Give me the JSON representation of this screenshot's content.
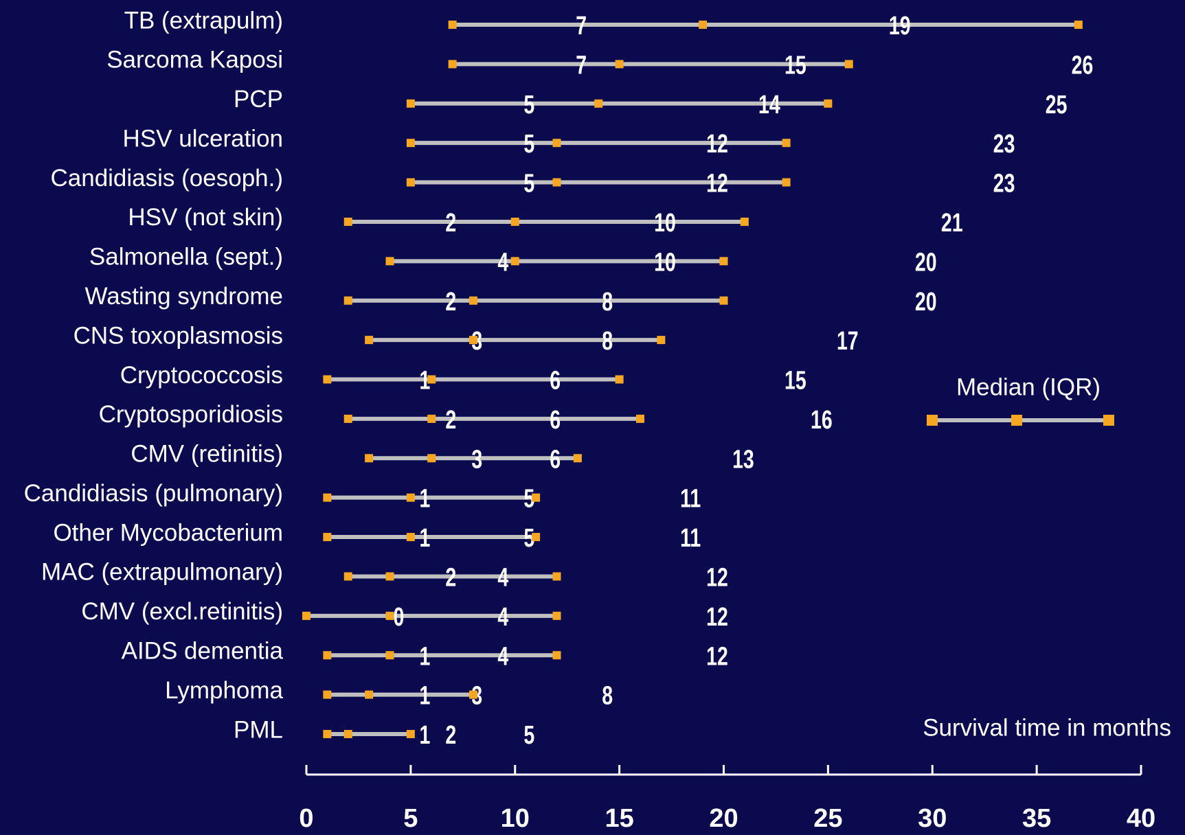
{
  "chart_data": {
    "type": "range",
    "categories": [
      "TB (extrapulm)",
      "Sarcoma Kaposi",
      "PCP",
      "HSV ulceration",
      "Candidiasis (oesoph.)",
      "HSV (not skin)",
      "Salmonella (sept.)",
      "Wasting syndrome",
      "CNS toxoplasmosis",
      "Cryptococcosis",
      "Cryptosporidiosis",
      "CMV (retinitis)",
      "Candidiasis (pulmonary)",
      "Other Mycobacterium",
      "MAC (extrapulmonary)",
      "CMV (excl.retinitis)",
      "AIDS dementia",
      "Lymphoma",
      "PML"
    ],
    "values": [
      [
        7,
        19,
        37
      ],
      [
        7,
        15,
        26
      ],
      [
        5,
        14,
        25
      ],
      [
        5,
        12,
        23
      ],
      [
        5,
        12,
        23
      ],
      [
        2,
        10,
        21
      ],
      [
        4,
        10,
        20
      ],
      [
        2,
        8,
        20
      ],
      [
        3,
        8,
        17
      ],
      [
        1,
        6,
        15
      ],
      [
        2,
        6,
        16
      ],
      [
        3,
        6,
        13
      ],
      [
        1,
        5,
        11
      ],
      [
        1,
        5,
        11
      ],
      [
        2,
        4,
        12
      ],
      [
        0,
        4,
        12
      ],
      [
        1,
        4,
        12
      ],
      [
        1,
        3,
        8
      ],
      [
        1,
        2,
        5
      ]
    ],
    "legend": "Median (IQR)",
    "x_label": "Survival time in months",
    "line_color": "#c0c0c0",
    "marker_color": "#f5a623",
    "xlim": [
      0,
      40
    ],
    "xticks": [
      0,
      5,
      10,
      15,
      20,
      25,
      30,
      35,
      40
    ]
  }
}
